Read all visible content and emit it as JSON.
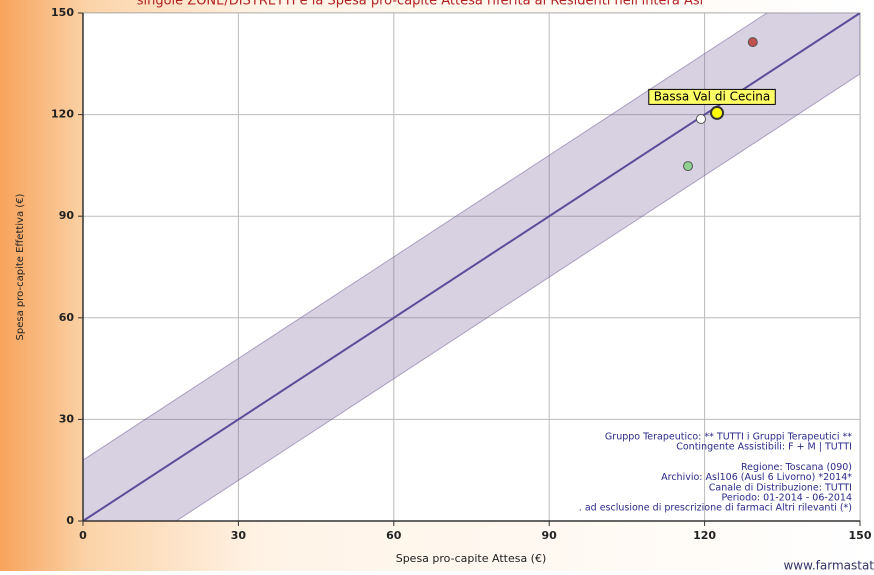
{
  "chart_data": {
    "type": "scatter",
    "title": "singole ZONE/DISTRETTI e la Spesa pro-capite Attesa riferita ai Residenti nell'intera Asl",
    "x_label": "Spesa pro-capite Attesa (€)",
    "y_label": "Spesa pro-capite Effettiva (€)",
    "x": [
      129.3,
      119.3,
      122.4,
      116.8
    ],
    "values": [
      141.4,
      118.7,
      120.5,
      104.8
    ],
    "point_colors": [
      "#c0504d",
      "#ffffff",
      "#ffff00",
      "#8fd18f"
    ],
    "point_labels": [
      null,
      null,
      "Bassa Val di Cecina",
      null
    ],
    "band": 18,
    "xlim": [
      0,
      150
    ],
    "ylim": [
      0,
      150
    ],
    "xticks": [
      0,
      30,
      60,
      90,
      120,
      150
    ],
    "yticks": [
      0,
      30,
      60,
      90,
      120,
      150
    ],
    "grid": true,
    "notes": [
      [
        "Gruppo Terapeutico: ** TUTTI i Gruppi Terapeutici **",
        "Contingente Assistibili: F + M   |   TUTTI"
      ],
      [
        "Regione: Toscana (090)",
        "Archivio: Asl106 (Ausl 6 Livorno) *2014*",
        "Canale di Distribuzione: TUTTI",
        "Periodo: 01-2014 - 06-2014",
        ". ad esclusione di prescrizione di farmaci Altri rilevanti (*)"
      ]
    ],
    "watermark": "www.farmastat"
  }
}
